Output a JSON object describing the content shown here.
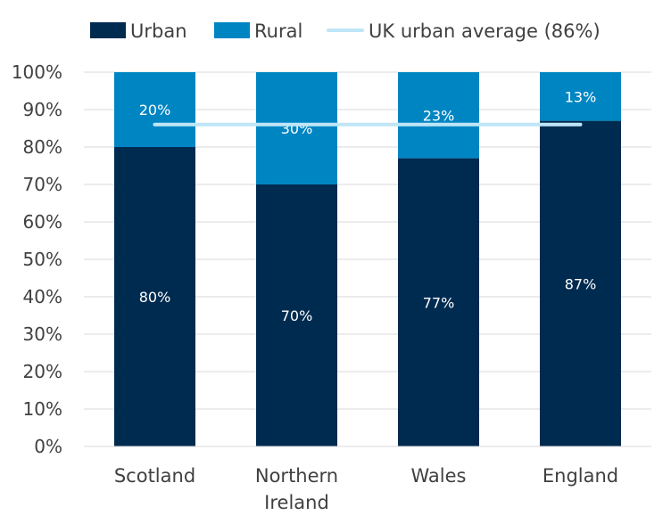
{
  "chart_data": {
    "type": "bar",
    "stacked": true,
    "categories": [
      "Scotland",
      "Northern Ireland",
      "Wales",
      "England"
    ],
    "category_lines": [
      [
        "Scotland"
      ],
      [
        "Northern",
        "Ireland"
      ],
      [
        "Wales"
      ],
      [
        "England"
      ]
    ],
    "series": [
      {
        "name": "Urban",
        "values": [
          80,
          70,
          77,
          87
        ],
        "labels": [
          "80%",
          "70%",
          "77%",
          "87%"
        ],
        "color": "#002b50"
      },
      {
        "name": "Rural",
        "values": [
          20,
          30,
          23,
          13
        ],
        "labels": [
          "20%",
          "30%",
          "23%",
          "13%"
        ],
        "color": "#0085c3"
      }
    ],
    "reference_line": {
      "name": "UK urban average (86%)",
      "value": 86,
      "color": "#bfe6f7"
    },
    "y_ticks": [
      "0%",
      "10%",
      "20%",
      "30%",
      "40%",
      "50%",
      "60%",
      "70%",
      "80%",
      "90%",
      "100%"
    ],
    "ylim": [
      0,
      100
    ],
    "grid": true,
    "gridline_color": "#d9d9d9",
    "legend_position": "top",
    "title": "",
    "xlabel": "",
    "ylabel": ""
  }
}
